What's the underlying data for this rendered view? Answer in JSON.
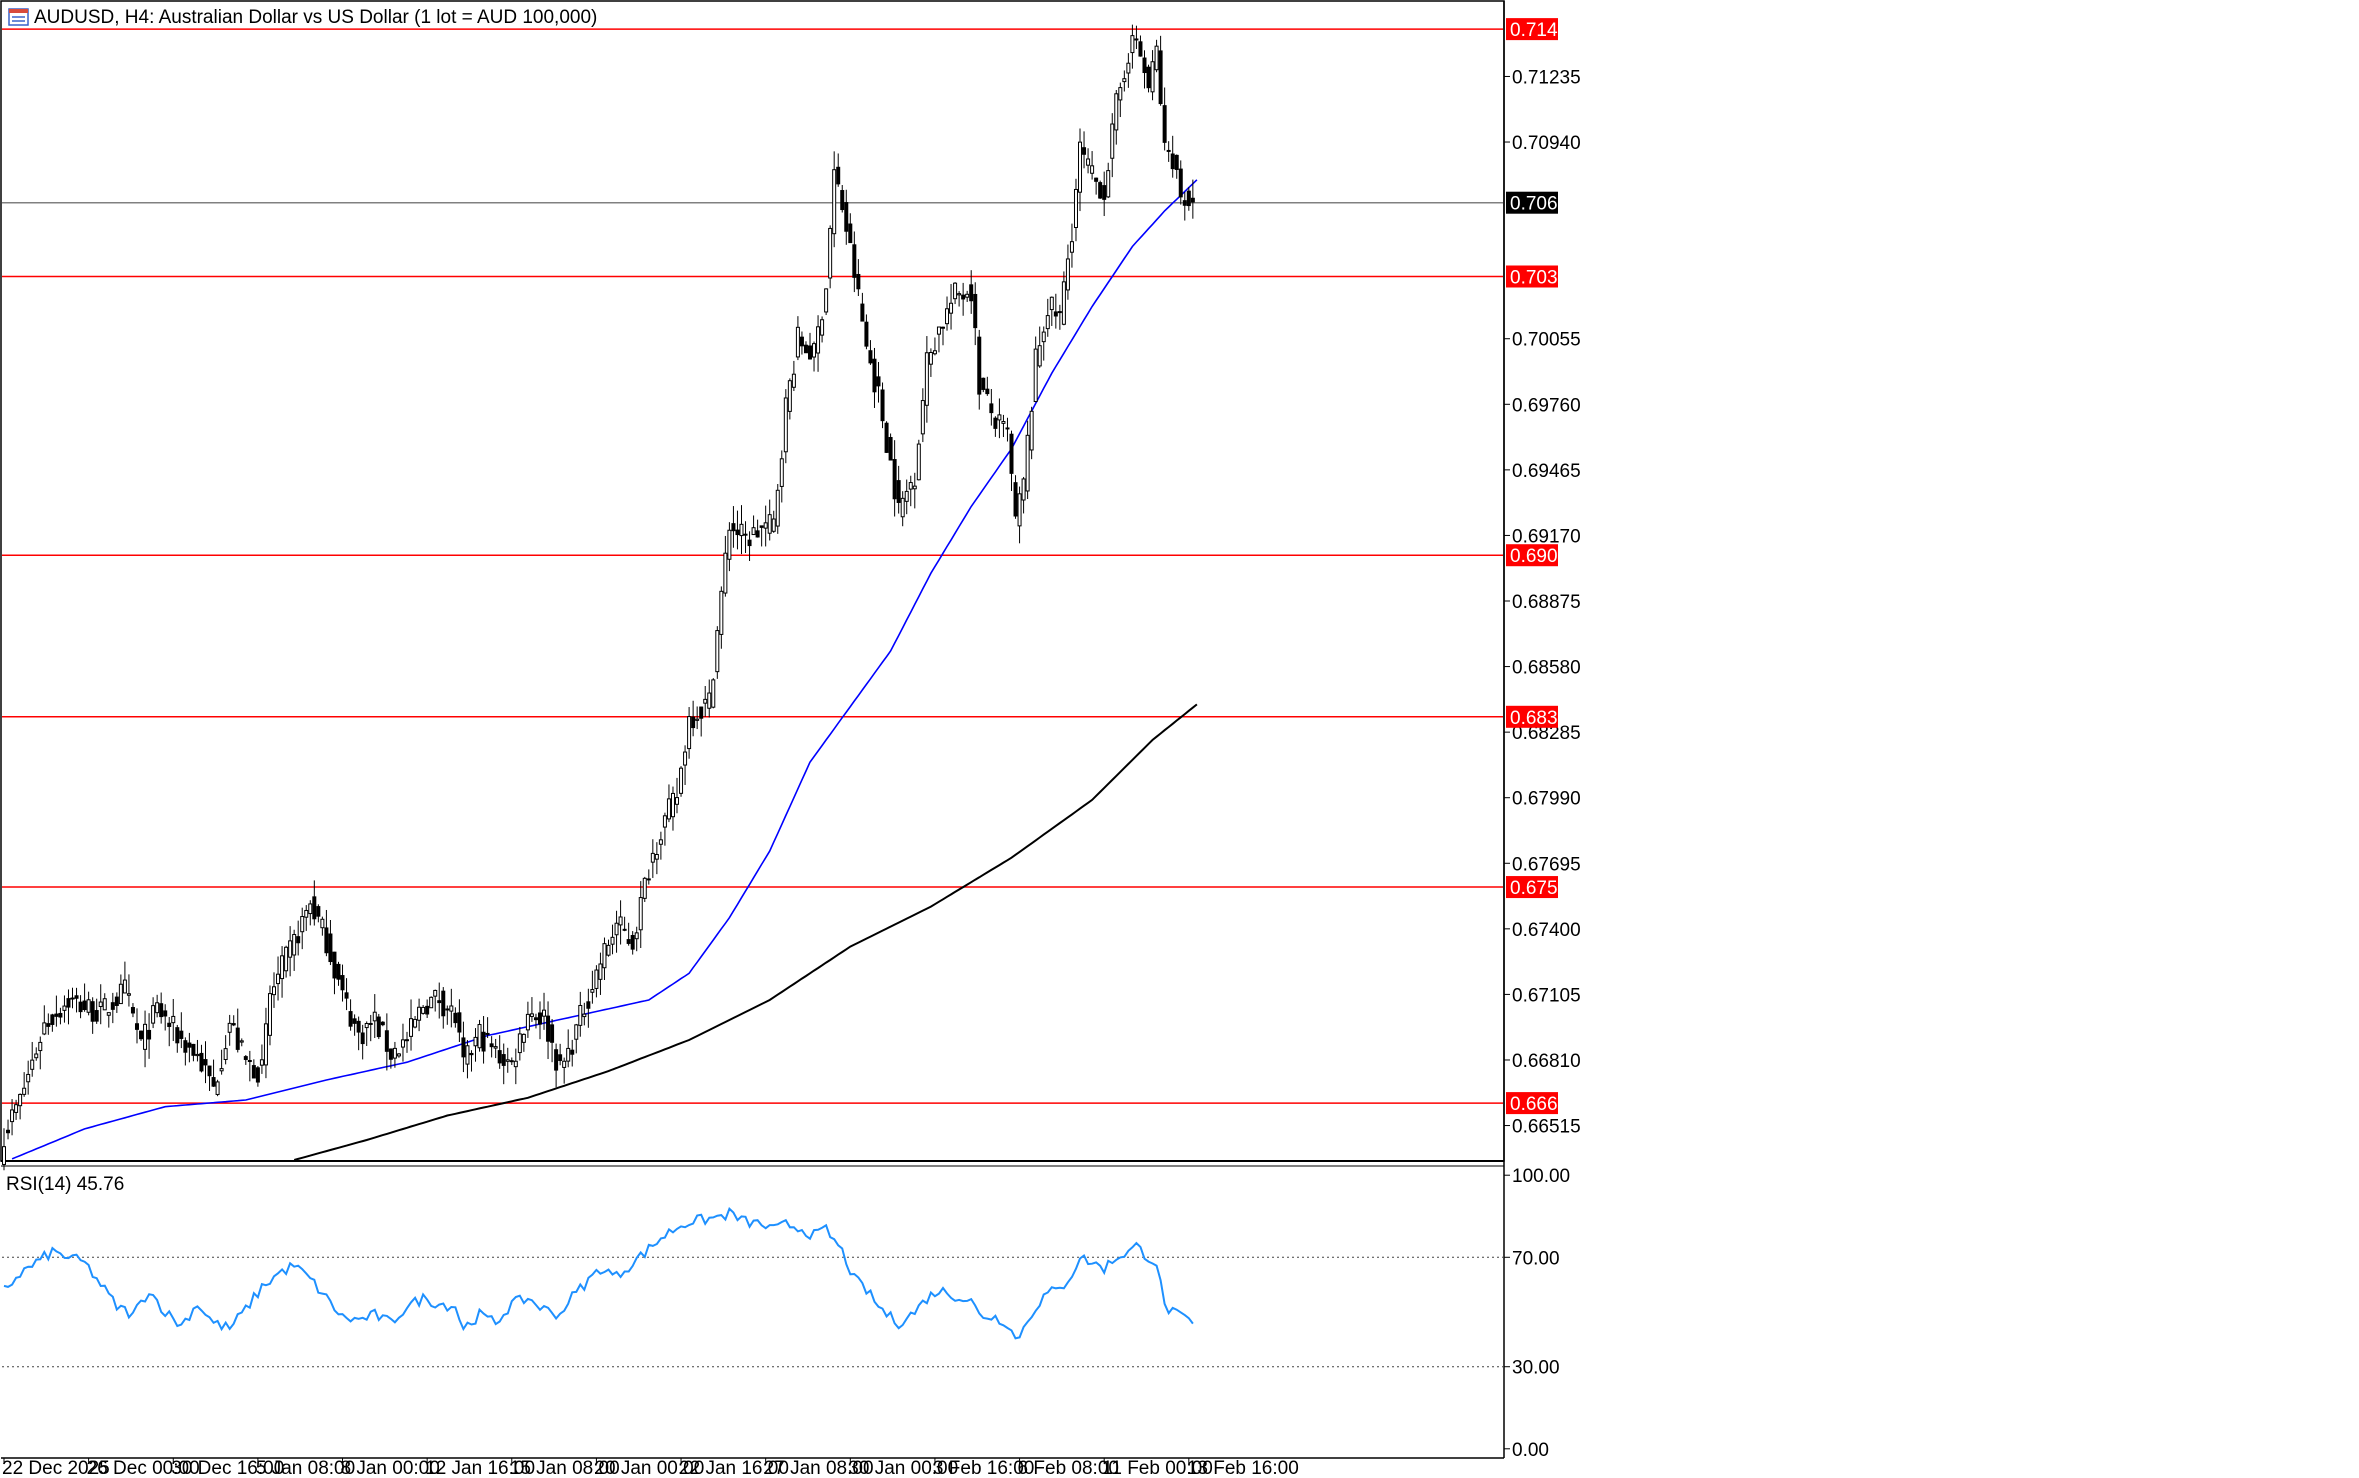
{
  "header": {
    "title": "AUDUSD, H4:  Australian Dollar vs US Dollar (1 lot = AUD 100,000)",
    "icon": "chart-window-icon"
  },
  "rsi_panel": {
    "title": "RSI(14) 45.76"
  },
  "colors": {
    "resistance_line": "#ff0000",
    "current_price_line": "#808080",
    "ma_blue": "#0000ff",
    "ma_black": "#000000",
    "rsi_line": "#1e90ff",
    "label_red_bg": "#ff0000",
    "label_current_bg": "#000000"
  },
  "chart_data": [
    {
      "type": "candlestick",
      "symbol": "AUDUSD",
      "timeframe": "H4",
      "y_axis_ticks": [
        "0.71235",
        "0.70940",
        "0.70055",
        "0.69760",
        "0.69465",
        "0.69170",
        "0.68875",
        "0.68580",
        "0.68285",
        "0.67990",
        "0.67695",
        "0.67400",
        "0.67105",
        "0.66810",
        "0.66515"
      ],
      "y_axis_tick_values": [
        0.71235,
        0.7094,
        0.70055,
        0.6976,
        0.69465,
        0.6917,
        0.68875,
        0.6858,
        0.68285,
        0.6799,
        0.67695,
        0.674,
        0.67105,
        0.6681,
        0.66515
      ],
      "ylim": [
        0.6636,
        0.7157
      ],
      "x_axis_ticks": [
        "22 Dec 2025",
        "26 Dec 00:00",
        "30 Dec 16:00",
        "5 Jan 08:00",
        "8 Jan 00:00",
        "12 Jan 16:00",
        "15 Jan 08:00",
        "20 Jan 00:00",
        "22 Jan 16:00",
        "27 Jan 08:00",
        "30 Jan 00:00",
        "3 Feb 16:00",
        "6 Feb 08:00",
        "11 Feb 00:00",
        "13 Feb 16:00"
      ],
      "x_axis_tick_bars": [
        0,
        21,
        42,
        63,
        84,
        105,
        126,
        147,
        168,
        189,
        210,
        231,
        252,
        273,
        294
      ],
      "horizontal_lines": [
        {
          "label": "0.71448",
          "value": 0.71448,
          "style": "red"
        },
        {
          "label": "0.70335",
          "value": 0.70335,
          "style": "red"
        },
        {
          "label": "0.69081",
          "value": 0.69081,
          "style": "red"
        },
        {
          "label": "0.68354",
          "value": 0.68354,
          "style": "red"
        },
        {
          "label": "0.67588",
          "value": 0.67588,
          "style": "red"
        },
        {
          "label": "0.66616",
          "value": 0.66616,
          "style": "red"
        }
      ],
      "current_price": {
        "label": "0.70667",
        "value": 0.70667
      },
      "close_anchors": [
        [
          0,
          0.6648
        ],
        [
          4,
          0.6663
        ],
        [
          10,
          0.6697
        ],
        [
          16,
          0.6708
        ],
        [
          24,
          0.6702
        ],
        [
          30,
          0.6712
        ],
        [
          34,
          0.6688
        ],
        [
          38,
          0.6704
        ],
        [
          44,
          0.669
        ],
        [
          48,
          0.6683
        ],
        [
          52,
          0.6668
        ],
        [
          56,
          0.6698
        ],
        [
          60,
          0.668
        ],
        [
          64,
          0.6676
        ],
        [
          66,
          0.671
        ],
        [
          72,
          0.6734
        ],
        [
          76,
          0.6752
        ],
        [
          80,
          0.6735
        ],
        [
          84,
          0.671
        ],
        [
          88,
          0.6692
        ],
        [
          92,
          0.6699
        ],
        [
          96,
          0.6684
        ],
        [
          100,
          0.669
        ],
        [
          104,
          0.6706
        ],
        [
          108,
          0.6709
        ],
        [
          112,
          0.67
        ],
        [
          114,
          0.6678
        ],
        [
          118,
          0.6693
        ],
        [
          122,
          0.6684
        ],
        [
          126,
          0.6679
        ],
        [
          130,
          0.6703
        ],
        [
          134,
          0.67
        ],
        [
          138,
          0.6676
        ],
        [
          140,
          0.6684
        ],
        [
          144,
          0.6705
        ],
        [
          148,
          0.6725
        ],
        [
          152,
          0.6742
        ],
        [
          156,
          0.6734
        ],
        [
          160,
          0.6768
        ],
        [
          163,
          0.6785
        ],
        [
          167,
          0.68
        ],
        [
          170,
          0.6835
        ],
        [
          175,
          0.6842
        ],
        [
          178,
          0.689
        ],
        [
          180,
          0.6922
        ],
        [
          184,
          0.6915
        ],
        [
          188,
          0.692
        ],
        [
          191,
          0.6922
        ],
        [
          194,
          0.6975
        ],
        [
          197,
          0.7005
        ],
        [
          201,
          0.6998
        ],
        [
          204,
          0.703
        ],
        [
          206,
          0.708
        ],
        [
          208,
          0.7065
        ],
        [
          211,
          0.7035
        ],
        [
          214,
          0.7002
        ],
        [
          217,
          0.698
        ],
        [
          220,
          0.695
        ],
        [
          222,
          0.6928
        ],
        [
          226,
          0.6945
        ],
        [
          229,
          0.6995
        ],
        [
          232,
          0.701
        ],
        [
          236,
          0.7025
        ],
        [
          240,
          0.7028
        ],
        [
          242,
          0.6985
        ],
        [
          246,
          0.6968
        ],
        [
          249,
          0.6962
        ],
        [
          251,
          0.6923
        ],
        [
          253,
          0.694
        ],
        [
          256,
          0.6995
        ],
        [
          259,
          0.702
        ],
        [
          262,
          0.7015
        ],
        [
          265,
          0.7055
        ],
        [
          267,
          0.709
        ],
        [
          270,
          0.7078
        ],
        [
          273,
          0.7072
        ],
        [
          276,
          0.711
        ],
        [
          279,
          0.7135
        ],
        [
          281,
          0.714
        ],
        [
          284,
          0.7118
        ],
        [
          286,
          0.7135
        ],
        [
          288,
          0.709
        ],
        [
          290,
          0.7088
        ],
        [
          292,
          0.707
        ],
        [
          294,
          0.7068
        ],
        [
          295,
          0.7067
        ]
      ],
      "ma_blue_anchors": [
        [
          0,
          0.6635
        ],
        [
          20,
          0.665
        ],
        [
          40,
          0.666
        ],
        [
          60,
          0.6663
        ],
        [
          80,
          0.6672
        ],
        [
          100,
          0.668
        ],
        [
          120,
          0.6692
        ],
        [
          140,
          0.67
        ],
        [
          160,
          0.6708
        ],
        [
          170,
          0.672
        ],
        [
          180,
          0.6745
        ],
        [
          190,
          0.6775
        ],
        [
          200,
          0.6815
        ],
        [
          210,
          0.684
        ],
        [
          220,
          0.6865
        ],
        [
          230,
          0.69
        ],
        [
          240,
          0.693
        ],
        [
          250,
          0.6956
        ],
        [
          260,
          0.699
        ],
        [
          270,
          0.702
        ],
        [
          280,
          0.7047
        ],
        [
          288,
          0.7063
        ],
        [
          296,
          0.7077
        ]
      ],
      "ma_black_anchors": [
        [
          72,
          0.6636
        ],
        [
          90,
          0.6645
        ],
        [
          110,
          0.6656
        ],
        [
          130,
          0.6664
        ],
        [
          150,
          0.6676
        ],
        [
          170,
          0.669
        ],
        [
          190,
          0.6708
        ],
        [
          210,
          0.6732
        ],
        [
          230,
          0.675
        ],
        [
          250,
          0.6772
        ],
        [
          270,
          0.6798
        ],
        [
          285,
          0.6825
        ],
        [
          296,
          0.6841
        ]
      ]
    },
    {
      "type": "line",
      "name": "RSI(14)",
      "current_value": 45.76,
      "ylim": [
        -3,
        103
      ],
      "y_axis_ticks": [
        "100.00",
        "70.00",
        "30.00",
        "0.00"
      ],
      "y_axis_tick_values": [
        100,
        70,
        30,
        0
      ],
      "levels": [
        70,
        30
      ],
      "values_anchors": [
        [
          0,
          58
        ],
        [
          4,
          64
        ],
        [
          8,
          68
        ],
        [
          12,
          72
        ],
        [
          16,
          70
        ],
        [
          20,
          68
        ],
        [
          24,
          60
        ],
        [
          28,
          52
        ],
        [
          32,
          49
        ],
        [
          36,
          58
        ],
        [
          40,
          50
        ],
        [
          44,
          45
        ],
        [
          48,
          53
        ],
        [
          52,
          46
        ],
        [
          56,
          44
        ],
        [
          60,
          51
        ],
        [
          64,
          59
        ],
        [
          68,
          64
        ],
        [
          72,
          67
        ],
        [
          76,
          62
        ],
        [
          80,
          55
        ],
        [
          84,
          48
        ],
        [
          88,
          47
        ],
        [
          92,
          49
        ],
        [
          96,
          46
        ],
        [
          100,
          52
        ],
        [
          104,
          55
        ],
        [
          108,
          53
        ],
        [
          112,
          52
        ],
        [
          114,
          44
        ],
        [
          118,
          49
        ],
        [
          122,
          46
        ],
        [
          126,
          53
        ],
        [
          130,
          55
        ],
        [
          134,
          51
        ],
        [
          138,
          49
        ],
        [
          140,
          54
        ],
        [
          144,
          60
        ],
        [
          148,
          66
        ],
        [
          152,
          63
        ],
        [
          156,
          68
        ],
        [
          160,
          73
        ],
        [
          163,
          77
        ],
        [
          167,
          81
        ],
        [
          170,
          83
        ],
        [
          175,
          84
        ],
        [
          178,
          85
        ],
        [
          180,
          86
        ],
        [
          184,
          83
        ],
        [
          188,
          82
        ],
        [
          191,
          80
        ],
        [
          194,
          82
        ],
        [
          197,
          81
        ],
        [
          201,
          78
        ],
        [
          204,
          80
        ],
        [
          206,
          76
        ],
        [
          208,
          72
        ],
        [
          211,
          62
        ],
        [
          214,
          58
        ],
        [
          217,
          52
        ],
        [
          220,
          48
        ],
        [
          222,
          46
        ],
        [
          226,
          50
        ],
        [
          229,
          55
        ],
        [
          232,
          58
        ],
        [
          236,
          56
        ],
        [
          240,
          54
        ],
        [
          242,
          49
        ],
        [
          246,
          48
        ],
        [
          249,
          46
        ],
        [
          251,
          40
        ],
        [
          253,
          44
        ],
        [
          256,
          52
        ],
        [
          259,
          57
        ],
        [
          262,
          58
        ],
        [
          265,
          64
        ],
        [
          267,
          70
        ],
        [
          270,
          68
        ],
        [
          273,
          66
        ],
        [
          276,
          70
        ],
        [
          279,
          72
        ],
        [
          281,
          74
        ],
        [
          284,
          70
        ],
        [
          286,
          68
        ],
        [
          288,
          52
        ],
        [
          290,
          50
        ],
        [
          292,
          48
        ],
        [
          294,
          47
        ],
        [
          295,
          45.76
        ]
      ]
    }
  ]
}
